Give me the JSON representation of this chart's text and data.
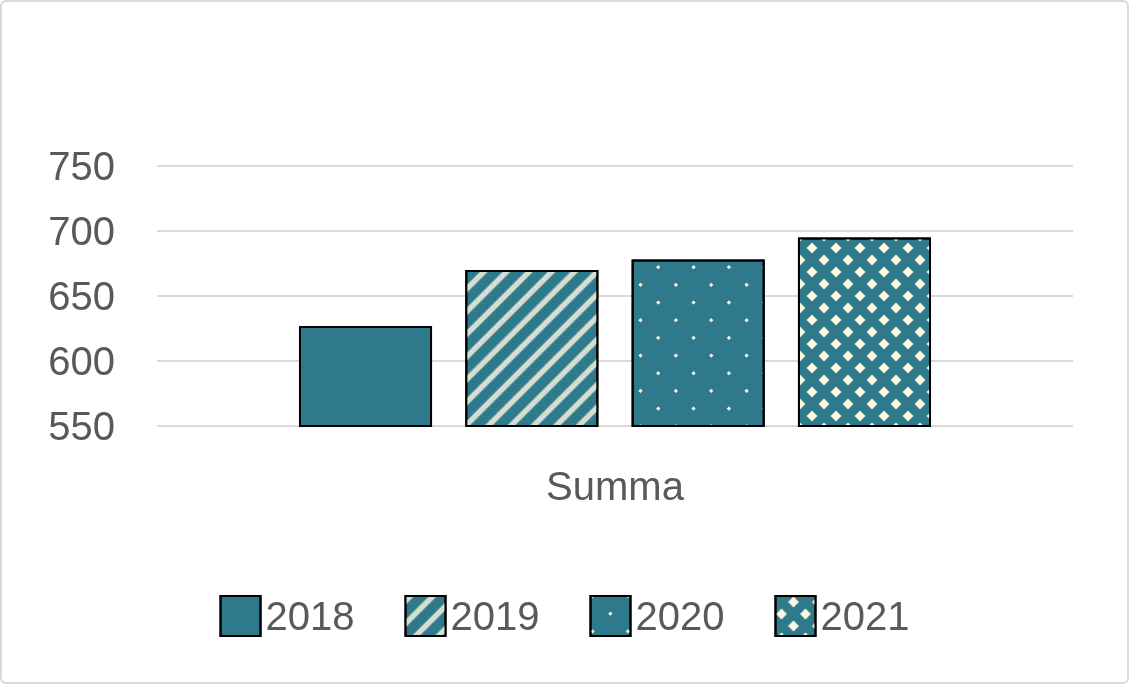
{
  "chart_data": {
    "type": "bar",
    "categories": [
      "Summa"
    ],
    "series": [
      {
        "name": "2018",
        "color": "#2e7a8c",
        "values": [
          627
        ]
      },
      {
        "name": "2019",
        "color": "#2e7a8c",
        "values": [
          670
        ]
      },
      {
        "name": "2020",
        "color": "#2e7a8c",
        "values": [
          678
        ]
      },
      {
        "name": "2021",
        "color": "#2e7a8c",
        "values": [
          695
        ]
      }
    ],
    "ylim": [
      550,
      750
    ],
    "yticks": [
      550,
      600,
      650,
      700,
      750
    ],
    "grid": "y",
    "legend": "bottom"
  }
}
